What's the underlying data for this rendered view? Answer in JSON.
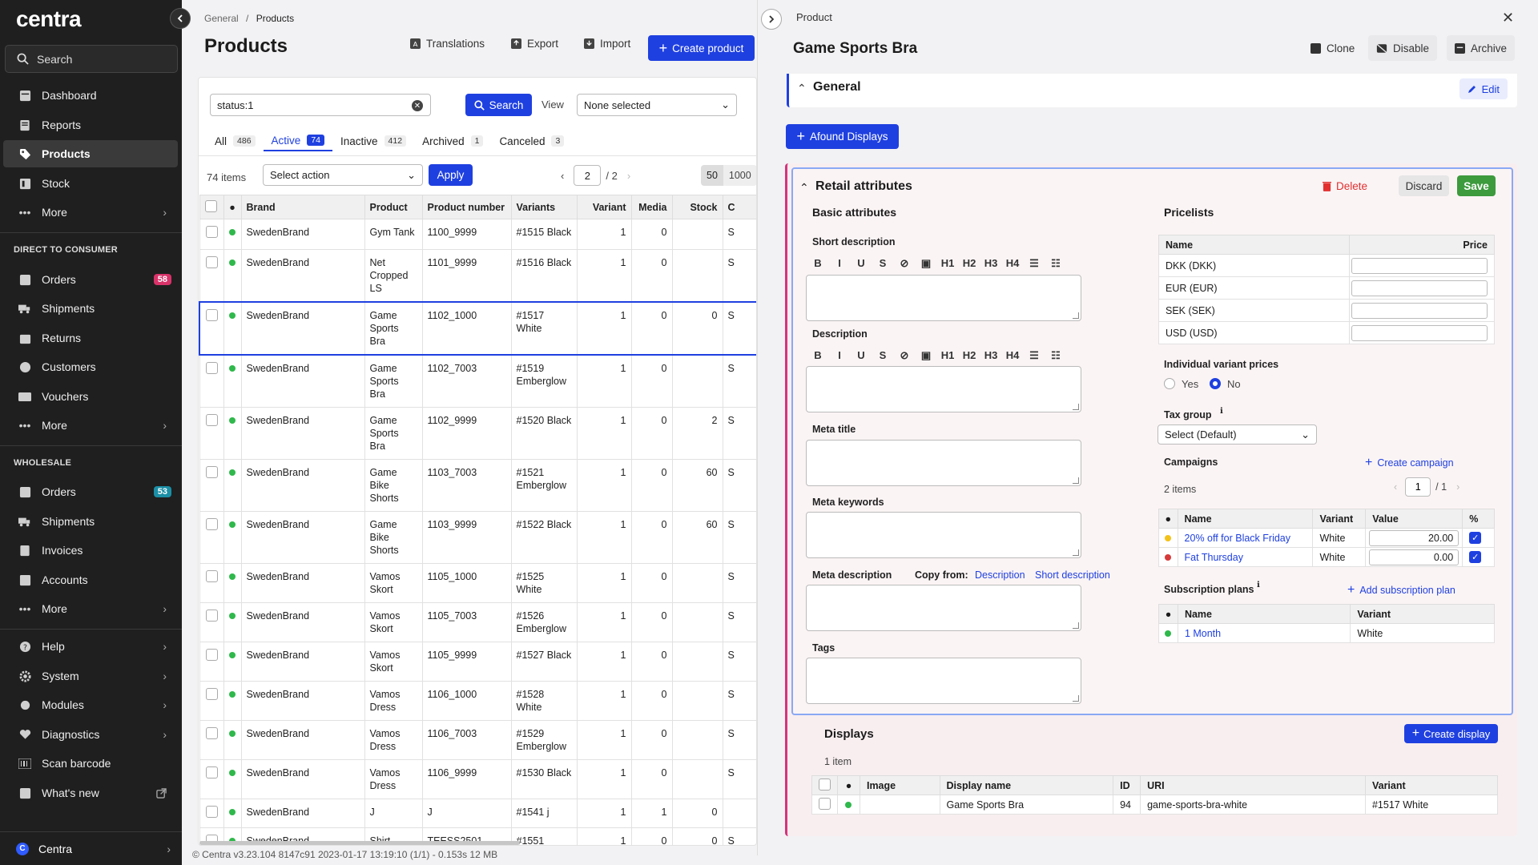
{
  "sidebar": {
    "logo": "centra",
    "search": "Search",
    "main_items": [
      {
        "label": "Dashboard",
        "icon": "dashboard-icon"
      },
      {
        "label": "Reports",
        "icon": "reports-icon"
      },
      {
        "label": "Products",
        "icon": "tag-icon"
      },
      {
        "label": "Stock",
        "icon": "stock-icon"
      },
      {
        "label": "More",
        "icon": "more-icon"
      }
    ],
    "dtc_section": "DIRECT TO CONSUMER",
    "dtc_items": [
      {
        "label": "Orders",
        "badge": "58"
      },
      {
        "label": "Shipments"
      },
      {
        "label": "Returns"
      },
      {
        "label": "Customers"
      },
      {
        "label": "Vouchers"
      },
      {
        "label": "More"
      }
    ],
    "wholesale_section": "WHOLESALE",
    "wholesale_items": [
      {
        "label": "Orders",
        "badge": "53"
      },
      {
        "label": "Shipments"
      },
      {
        "label": "Invoices"
      },
      {
        "label": "Accounts"
      },
      {
        "label": "More"
      }
    ],
    "bottom_items": [
      {
        "label": "Help"
      },
      {
        "label": "System"
      },
      {
        "label": "Modules"
      },
      {
        "label": "Diagnostics"
      },
      {
        "label": "Scan barcode"
      },
      {
        "label": "What's new"
      }
    ],
    "footer": "Centra",
    "footer_badge": "C",
    "badge_colors": {
      "dtc": "#d9336a",
      "wholesale": "#1b8fa6"
    }
  },
  "list": {
    "breadcrumb": {
      "parent": "General",
      "separator": "/",
      "current": "Products"
    },
    "title": "Products",
    "toolbar": {
      "translations": "Translations",
      "export": "Export",
      "import": "Import",
      "create": "Create product"
    },
    "search": {
      "value": "status:1",
      "button": "Search",
      "view_label": "View",
      "view_value": "None selected"
    },
    "tabs": [
      {
        "label": "All",
        "count": "486"
      },
      {
        "label": "Active",
        "count": "74"
      },
      {
        "label": "Inactive",
        "count": "412"
      },
      {
        "label": "Archived",
        "count": "1"
      },
      {
        "label": "Canceled",
        "count": "3"
      }
    ],
    "items_count": "74 items",
    "action_select": "Select action",
    "apply": "Apply",
    "page": "2",
    "page_total": "/ 2",
    "per_page": [
      "50",
      "1000"
    ],
    "columns": [
      "Brand",
      "Product",
      "Product number",
      "Variants",
      "Variant",
      "Media",
      "Stock",
      "C"
    ],
    "rows": [
      {
        "brand": "SwedenBrand",
        "product": "Gym Tank",
        "number": "1100_9999",
        "variants": "#1515 Black",
        "variant": "1",
        "media": "0",
        "stock": "",
        "c": "S"
      },
      {
        "brand": "SwedenBrand",
        "product": "Net Cropped LS",
        "number": "1101_9999",
        "variants": "#1516 Black",
        "variant": "1",
        "media": "0",
        "stock": "",
        "c": "S"
      },
      {
        "brand": "SwedenBrand",
        "product": "Game Sports Bra",
        "number": "1102_1000",
        "variants": "#1517 White",
        "variant": "1",
        "media": "0",
        "stock": "0",
        "c": "S"
      },
      {
        "brand": "SwedenBrand",
        "product": "Game Sports Bra",
        "number": "1102_7003",
        "variants": "#1519 Emberglow",
        "variant": "1",
        "media": "0",
        "stock": "",
        "c": "S"
      },
      {
        "brand": "SwedenBrand",
        "product": "Game Sports Bra",
        "number": "1102_9999",
        "variants": "#1520 Black",
        "variant": "1",
        "media": "0",
        "stock": "2",
        "c": "S"
      },
      {
        "brand": "SwedenBrand",
        "product": "Game Bike Shorts",
        "number": "1103_7003",
        "variants": "#1521 Emberglow",
        "variant": "1",
        "media": "0",
        "stock": "60",
        "c": "S"
      },
      {
        "brand": "SwedenBrand",
        "product": "Game Bike Shorts",
        "number": "1103_9999",
        "variants": "#1522 Black",
        "variant": "1",
        "media": "0",
        "stock": "60",
        "c": "S"
      },
      {
        "brand": "SwedenBrand",
        "product": "Vamos Skort",
        "number": "1105_1000",
        "variants": "#1525 White",
        "variant": "1",
        "media": "0",
        "stock": "",
        "c": "S"
      },
      {
        "brand": "SwedenBrand",
        "product": "Vamos Skort",
        "number": "1105_7003",
        "variants": "#1526 Emberglow",
        "variant": "1",
        "media": "0",
        "stock": "",
        "c": "S"
      },
      {
        "brand": "SwedenBrand",
        "product": "Vamos Skort",
        "number": "1105_9999",
        "variants": "#1527 Black",
        "variant": "1",
        "media": "0",
        "stock": "",
        "c": "S"
      },
      {
        "brand": "SwedenBrand",
        "product": "Vamos Dress",
        "number": "1106_1000",
        "variants": "#1528 White",
        "variant": "1",
        "media": "0",
        "stock": "",
        "c": "S"
      },
      {
        "brand": "SwedenBrand",
        "product": "Vamos Dress",
        "number": "1106_7003",
        "variants": "#1529 Emberglow",
        "variant": "1",
        "media": "0",
        "stock": "",
        "c": "S"
      },
      {
        "brand": "SwedenBrand",
        "product": "Vamos Dress",
        "number": "1106_9999",
        "variants": "#1530 Black",
        "variant": "1",
        "media": "0",
        "stock": "",
        "c": "S"
      },
      {
        "brand": "SwedenBrand",
        "product": "J",
        "number": "J",
        "variants": "#1541 j",
        "variant": "1",
        "media": "1",
        "stock": "0",
        "c": ""
      },
      {
        "brand": "SwedenBrand",
        "product": "Shirt",
        "number": "TEESS2501",
        "variants": "#1551",
        "variant": "1",
        "media": "0",
        "stock": "0",
        "c": "S"
      }
    ],
    "footer": "© Centra v3.23.104 8147c91 2023-01-17 13:19:10 (1/1) - 0.153s 12 MB"
  },
  "panel": {
    "label": "Product",
    "title": "Game Sports Bra",
    "actions": {
      "clone": "Clone",
      "disable": "Disable",
      "archive": "Archive"
    },
    "general": {
      "title": "General",
      "edit": "Edit"
    },
    "afound": "Afound Displays",
    "retail": {
      "title": "Retail attributes",
      "delete": "Delete",
      "discard": "Discard",
      "save": "Save",
      "basic_title": "Basic attributes",
      "short_description": "Short description",
      "description": "Description",
      "meta_title": "Meta title",
      "meta_keywords": "Meta keywords",
      "meta_description": "Meta description",
      "copy_from": "Copy from:",
      "copy_description": "Description",
      "copy_short": "Short description",
      "tags": "Tags",
      "rt_buttons": [
        "B",
        "I",
        "U",
        "S",
        "⊘",
        "▣",
        "H1",
        "H2",
        "H3",
        "H4",
        "☰",
        "☷"
      ],
      "pricelists_title": "Pricelists",
      "pricelist_cols": [
        "Name",
        "Price"
      ],
      "pricelists": [
        {
          "name": "DKK (DKK)",
          "price": ""
        },
        {
          "name": "EUR (EUR)",
          "price": ""
        },
        {
          "name": "SEK (SEK)",
          "price": ""
        },
        {
          "name": "USD (USD)",
          "price": ""
        }
      ],
      "individual_prices": "Individual variant prices",
      "yes": "Yes",
      "no": "No",
      "tax_group": "Tax group",
      "tax_value": "Select (Default)",
      "campaigns": "Campaigns",
      "create_campaign": "Create campaign",
      "campaign_count": "2 items",
      "campaign_page": "1",
      "campaign_total": "/ 1",
      "campaign_cols": [
        "Name",
        "Variant",
        "Value",
        "%"
      ],
      "campaign_rows": [
        {
          "name": "20% off for Black Friday",
          "variant": "White",
          "value": "20.00",
          "dot": "#f3c21a"
        },
        {
          "name": "Fat Thursday",
          "variant": "White",
          "value": "0.00",
          "dot": "#d63a3a"
        }
      ],
      "subscription_plans": "Subscription plans",
      "add_subscription": "Add subscription plan",
      "sub_cols": [
        "Name",
        "Variant"
      ],
      "sub_rows": [
        {
          "name": "1 Month",
          "variant": "White"
        }
      ]
    },
    "displays": {
      "title": "Displays",
      "create": "Create display",
      "count": "1 item",
      "cols": [
        "Image",
        "Display name",
        "ID",
        "URI",
        "Variant"
      ],
      "rows": [
        {
          "image": "",
          "name": "Game Sports Bra",
          "id": "94",
          "uri": "game-sports-bra-white",
          "variant": "#1517 White"
        }
      ]
    }
  }
}
